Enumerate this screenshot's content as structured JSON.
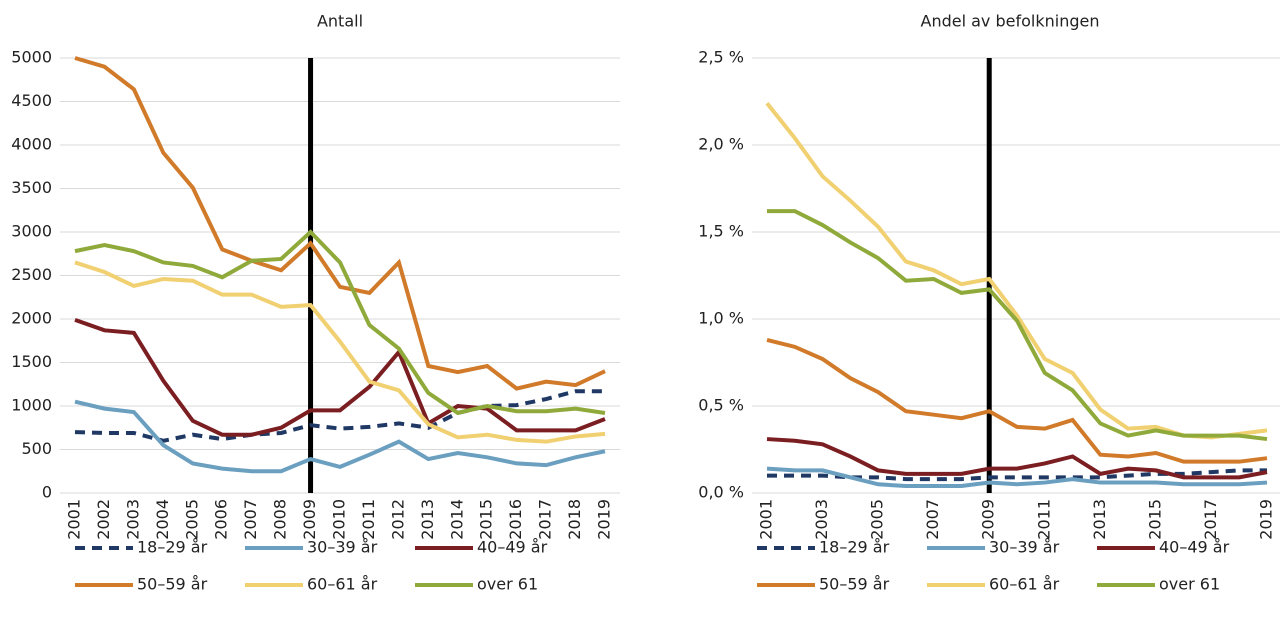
{
  "chart_data": [
    {
      "type": "line",
      "title": "Antall",
      "categories": [
        "2001",
        "2002",
        "2003",
        "2004",
        "2005",
        "2006",
        "2007",
        "2008",
        "2009",
        "2010",
        "2011",
        "2012",
        "2013",
        "2014",
        "2015",
        "2016",
        "2017",
        "2018",
        "2019"
      ],
      "ylim": [
        0,
        5000
      ],
      "yticks": [
        0,
        500,
        1000,
        1500,
        2000,
        2500,
        3000,
        3500,
        4000,
        4500,
        5000
      ],
      "grid": true,
      "vline": "2009",
      "series": [
        {
          "name": "18–29 år",
          "color": "#203864",
          "dash": true,
          "values": [
            700,
            690,
            690,
            600,
            670,
            620,
            670,
            690,
            780,
            740,
            760,
            800,
            750,
            920,
            1000,
            1010,
            1080,
            1170,
            1170
          ]
        },
        {
          "name": "30–39 år",
          "color": "#6a9fc0",
          "values": [
            1050,
            970,
            930,
            550,
            340,
            280,
            250,
            250,
            390,
            300,
            440,
            590,
            390,
            460,
            410,
            340,
            320,
            410,
            480
          ]
        },
        {
          "name": "40–49 år",
          "color": "#7b1e22",
          "values": [
            1990,
            1870,
            1840,
            1290,
            830,
            670,
            670,
            750,
            950,
            950,
            1220,
            1620,
            800,
            1000,
            970,
            720,
            720,
            720,
            850
          ]
        },
        {
          "name": "50–59 år",
          "color": "#d07a2a",
          "values": [
            5000,
            4900,
            4640,
            3910,
            3510,
            2800,
            2670,
            2560,
            2870,
            2370,
            2300,
            2650,
            1460,
            1390,
            1460,
            1200,
            1280,
            1240,
            1400
          ]
        },
        {
          "name": "60–61 år",
          "color": "#f0d070",
          "values": [
            2650,
            2540,
            2380,
            2460,
            2440,
            2280,
            2280,
            2140,
            2160,
            1740,
            1280,
            1180,
            790,
            640,
            670,
            610,
            590,
            650,
            680
          ]
        },
        {
          "name": "over 61",
          "color": "#8faa3a",
          "values": [
            2780,
            2850,
            2780,
            2650,
            2610,
            2480,
            2670,
            2690,
            3000,
            2650,
            1930,
            1660,
            1150,
            920,
            1000,
            940,
            940,
            970,
            920
          ]
        }
      ]
    },
    {
      "type": "line",
      "title": "Andel av befolkningen",
      "categories": [
        "2001",
        null,
        "2003",
        null,
        "2005",
        null,
        "2007",
        null,
        "2009",
        null,
        "2011",
        null,
        "2013",
        null,
        "2015",
        null,
        "2017",
        null,
        "2019"
      ],
      "ylim": [
        0,
        2.5
      ],
      "yticks": [
        {
          "value": 0,
          "label": "0,0 %"
        },
        {
          "value": 0.5,
          "label": "0,5 %"
        },
        {
          "value": 1,
          "label": "1,0 %"
        },
        {
          "value": 1.5,
          "label": "1,5 %"
        },
        {
          "value": 2,
          "label": "2,0 %"
        },
        {
          "value": 2.5,
          "label": "2,5 %"
        }
      ],
      "grid": true,
      "vline": "2009",
      "series": [
        {
          "name": "18–29 år",
          "color": "#203864",
          "dash": true,
          "values": [
            0.1,
            0.1,
            0.1,
            0.09,
            0.09,
            0.08,
            0.08,
            0.08,
            0.09,
            0.09,
            0.09,
            0.09,
            0.09,
            0.1,
            0.11,
            0.11,
            0.12,
            0.13,
            0.13
          ]
        },
        {
          "name": "30–39 år",
          "color": "#6a9fc0",
          "values": [
            0.14,
            0.13,
            0.13,
            0.09,
            0.05,
            0.04,
            0.04,
            0.04,
            0.06,
            0.05,
            0.06,
            0.08,
            0.06,
            0.06,
            0.06,
            0.05,
            0.05,
            0.05,
            0.06
          ]
        },
        {
          "name": "40–49 år",
          "color": "#7b1e22",
          "values": [
            0.31,
            0.3,
            0.28,
            0.21,
            0.13,
            0.11,
            0.11,
            0.11,
            0.14,
            0.14,
            0.17,
            0.21,
            0.11,
            0.14,
            0.13,
            0.09,
            0.09,
            0.09,
            0.12
          ]
        },
        {
          "name": "50–59 år",
          "color": "#d07a2a",
          "values": [
            0.88,
            0.84,
            0.77,
            0.66,
            0.58,
            0.47,
            0.45,
            0.43,
            0.47,
            0.38,
            0.37,
            0.42,
            0.22,
            0.21,
            0.23,
            0.18,
            0.18,
            0.18,
            0.2
          ]
        },
        {
          "name": "60–61 år",
          "color": "#f0d070",
          "values": [
            2.24,
            2.04,
            1.82,
            1.68,
            1.53,
            1.33,
            1.28,
            1.2,
            1.23,
            1.02,
            0.77,
            0.69,
            0.48,
            0.37,
            0.38,
            0.33,
            0.32,
            0.34,
            0.36
          ]
        },
        {
          "name": "over 61",
          "color": "#8faa3a",
          "values": [
            1.62,
            1.62,
            1.54,
            1.44,
            1.35,
            1.22,
            1.23,
            1.15,
            1.17,
            0.99,
            0.69,
            0.59,
            0.4,
            0.33,
            0.36,
            0.33,
            0.33,
            0.33,
            0.31
          ]
        }
      ]
    }
  ]
}
